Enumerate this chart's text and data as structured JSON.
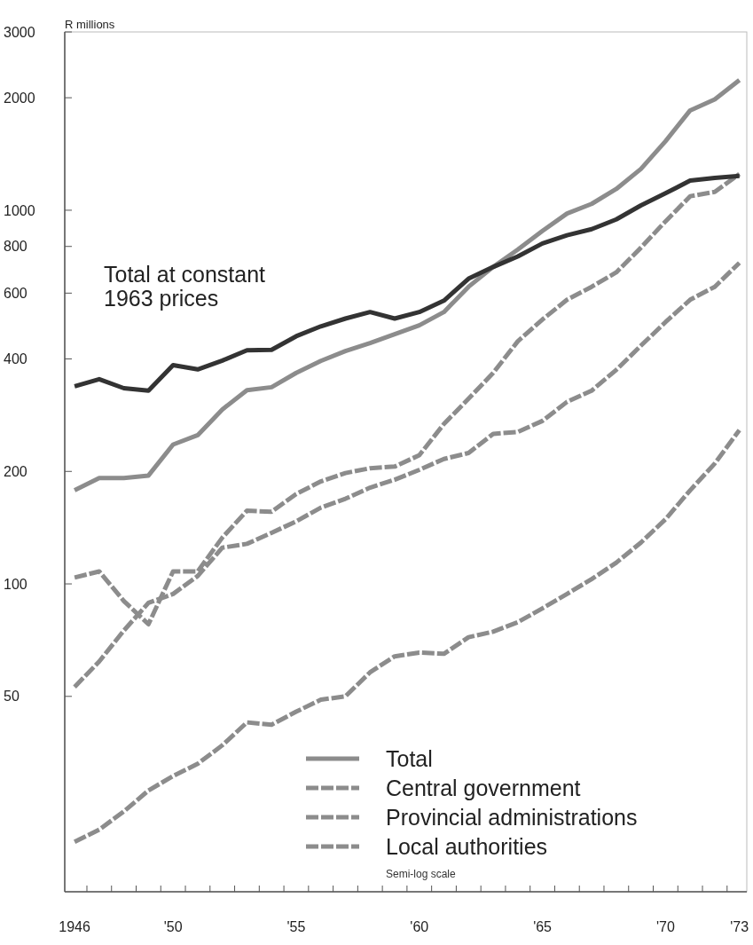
{
  "chart_data": {
    "type": "line",
    "ylabel": "R millions",
    "x": [
      1946,
      1947,
      1948,
      1949,
      1950,
      1951,
      1952,
      1953,
      1954,
      1955,
      1956,
      1957,
      1958,
      1959,
      1960,
      1961,
      1962,
      1963,
      1964,
      1965,
      1966,
      1967,
      1968,
      1969,
      1970,
      1971,
      1972,
      1973
    ],
    "series": [
      {
        "name": "Total",
        "color": "#8c8c8c",
        "line_style": "solid",
        "values": [
          178,
          192,
          192,
          195,
          236,
          250,
          293,
          330,
          336,
          367,
          395,
          420,
          441,
          466,
          492,
          534,
          624,
          705,
          785,
          880,
          980,
          1040,
          1140,
          1290,
          1530,
          1850,
          1980,
          2230
        ]
      },
      {
        "name": "Central government",
        "color": "#8c8c8c",
        "line_style": "dashed",
        "values": [
          104,
          108,
          90,
          78,
          108,
          108,
          133,
          157,
          156,
          174,
          188,
          198,
          204,
          206,
          221,
          268,
          313,
          367,
          446,
          510,
          576,
          624,
          682,
          794,
          934,
          1090,
          1120,
          1250
        ]
      },
      {
        "name": "Provincial administrations",
        "color": "#8c8c8c",
        "line_style": "dashed",
        "values": [
          53,
          62,
          75,
          89,
          94,
          105,
          125,
          128,
          137,
          147,
          160,
          169,
          181,
          190,
          202,
          216,
          224,
          252,
          255,
          273,
          307,
          329,
          374,
          434,
          502,
          576,
          624,
          723
        ]
      },
      {
        "name": "Local authorities",
        "color": "#8c8c8c",
        "line_style": "dashed",
        "values": [
          20.4,
          22,
          24.6,
          28,
          30.6,
          33,
          37,
          42.6,
          42,
          45.5,
          49,
          50,
          58,
          64,
          65.5,
          65,
          72,
          74.5,
          79,
          86,
          94,
          103,
          114,
          129,
          149,
          178,
          210,
          258
        ]
      },
      {
        "color": "#333333",
        "line_style": "solid",
        "values": [
          338,
          353,
          334,
          329,
          385,
          375,
          396,
          422,
          423,
          460,
          489,
          513,
          534,
          513,
          534,
          573,
          656,
          705,
          752,
          815,
          857,
          890,
          945,
          1030,
          1110,
          1200,
          1220,
          1235
        ]
      }
    ],
    "annotations": [
      "Total at constant 1963 prices",
      "Semi-log scale"
    ],
    "log": "y",
    "ylim": [
      15,
      3000
    ],
    "yticks": [
      50,
      100,
      200,
      400,
      600,
      800,
      1000,
      2000,
      3000
    ],
    "xlim": [
      1945.6,
      1973.3
    ],
    "xticks": [
      {
        "value": 1946,
        "label": "1946"
      },
      {
        "value": 1950,
        "label": "'50"
      },
      {
        "value": 1955,
        "label": "'55"
      },
      {
        "value": 1960,
        "label": "'60"
      },
      {
        "value": 1965,
        "label": "'65"
      },
      {
        "value": 1970,
        "label": "'70"
      },
      {
        "value": 1973,
        "label": "'73"
      },
      {
        "value": 1946.5,
        "label": null
      },
      {
        "value": 1947.5,
        "label": null
      },
      {
        "value": 1948.5,
        "label": null
      },
      {
        "value": 1949.5,
        "label": null
      },
      {
        "value": 1950.5,
        "label": null
      },
      {
        "value": 1951.5,
        "label": null
      },
      {
        "value": 1952.5,
        "label": null
      },
      {
        "value": 1953.5,
        "label": null
      },
      {
        "value": 1954.5,
        "label": null
      },
      {
        "value": 1955.5,
        "label": null
      },
      {
        "value": 1956.5,
        "label": null
      },
      {
        "value": 1957.5,
        "label": null
      },
      {
        "value": 1958.5,
        "label": null
      },
      {
        "value": 1959.5,
        "label": null
      },
      {
        "value": 1960.5,
        "label": null
      },
      {
        "value": 1961.5,
        "label": null
      },
      {
        "value": 1962.5,
        "label": null
      },
      {
        "value": 1963.5,
        "label": null
      },
      {
        "value": 1964.5,
        "label": null
      },
      {
        "value": 1965.5,
        "label": null
      },
      {
        "value": 1966.5,
        "label": null
      },
      {
        "value": 1967.5,
        "label": null
      },
      {
        "value": 1968.5,
        "label": null
      },
      {
        "value": 1969.5,
        "label": null
      },
      {
        "value": 1970.5,
        "label": null
      },
      {
        "value": 1971.5,
        "label": null
      },
      {
        "value": 1972.5,
        "label": null
      }
    ],
    "grid": false,
    "legend": "bottom"
  }
}
